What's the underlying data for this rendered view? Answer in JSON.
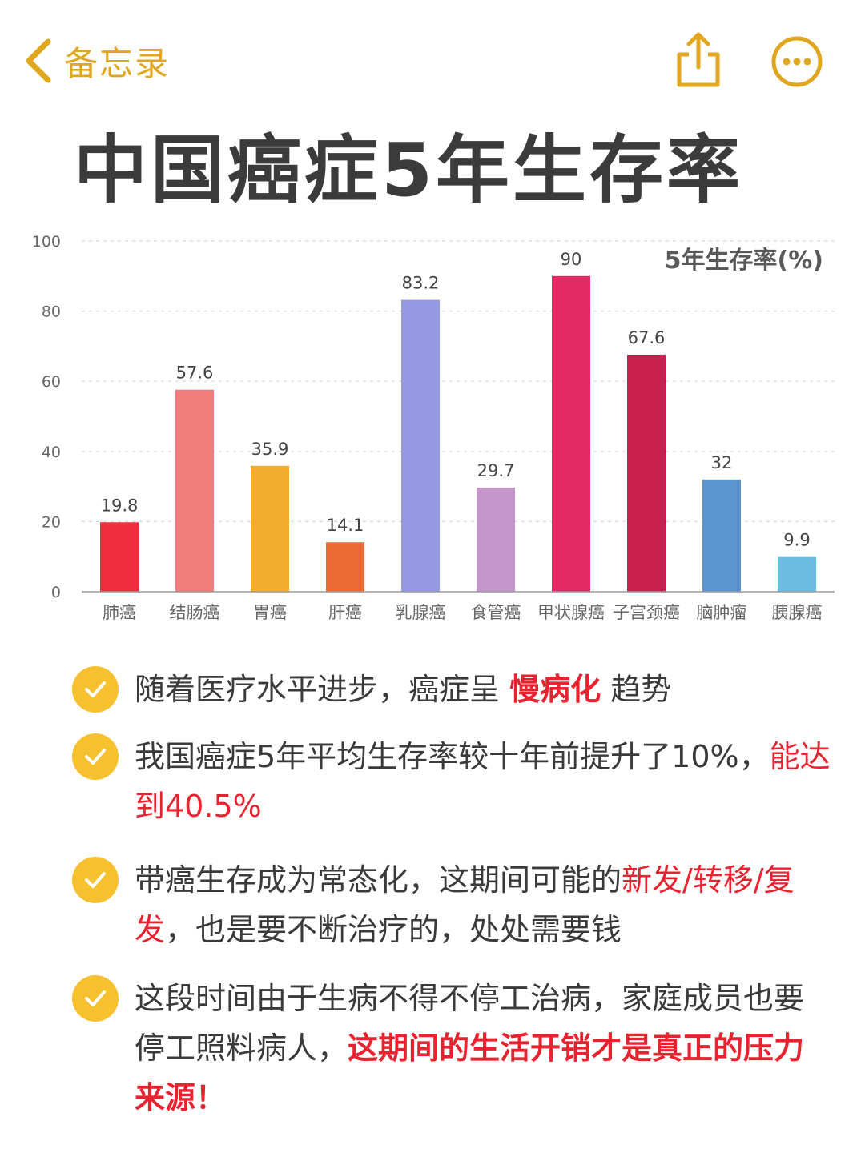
{
  "nav": {
    "back_label": "备忘录",
    "icons": [
      "chevron-left-icon",
      "share-icon",
      "more-icon"
    ],
    "accent": "#E0A61E"
  },
  "title": "中国癌症5年生存率",
  "chart_data": {
    "type": "bar",
    "title": "中国癌症5年生存率",
    "legend_label": "5年生存率(%)",
    "categories": [
      "肺癌",
      "结肠癌",
      "胃癌",
      "肝癌",
      "乳腺癌",
      "食管癌",
      "甲状腺癌",
      "子宫颈癌",
      "脑肿瘤",
      "胰腺癌"
    ],
    "values": [
      19.8,
      57.6,
      35.9,
      14.1,
      83.2,
      29.7,
      90,
      67.6,
      32,
      9.9
    ],
    "value_labels": [
      "19.8",
      "57.6",
      "35.9",
      "14.1",
      "83.2",
      "29.7",
      "90",
      "67.6",
      "32",
      "9.9"
    ],
    "colors": [
      "#EE2D3D",
      "#F17C7C",
      "#F2AD2E",
      "#EC6A36",
      "#9599E2",
      "#C596C9",
      "#E32A64",
      "#C81F4E",
      "#5B94D1",
      "#6CBCE0"
    ],
    "ylim": [
      0,
      100
    ],
    "yticks": [
      "0",
      "20",
      "40",
      "60",
      "80",
      "100"
    ],
    "grid": true
  },
  "points": [
    {
      "segments": [
        {
          "text": "随着医疗水平进步，癌症呈 ",
          "style": "normal"
        },
        {
          "text": "慢病化",
          "style": "bold-red"
        },
        {
          "text": " 趋势",
          "style": "normal"
        }
      ]
    },
    {
      "segments": [
        {
          "text": "我国癌症5年平均生存率较十年前提升了10%，",
          "style": "normal"
        },
        {
          "text": "能达到40.5%",
          "style": "red"
        }
      ]
    },
    {
      "segments": [
        {
          "text": "带癌生存成为常态化，这期间可能的",
          "style": "normal"
        },
        {
          "text": "新发/转移/复发",
          "style": "red"
        },
        {
          "text": "，也是要不断治疗的，处处需要钱",
          "style": "normal"
        }
      ]
    },
    {
      "segments": [
        {
          "text": "这段时间由于生病不得不停工治病，家庭成员也要停工照料病人，",
          "style": "normal"
        },
        {
          "text": "这期间的生活开销才是真正的压力来源！",
          "style": "bold-red"
        }
      ]
    }
  ]
}
